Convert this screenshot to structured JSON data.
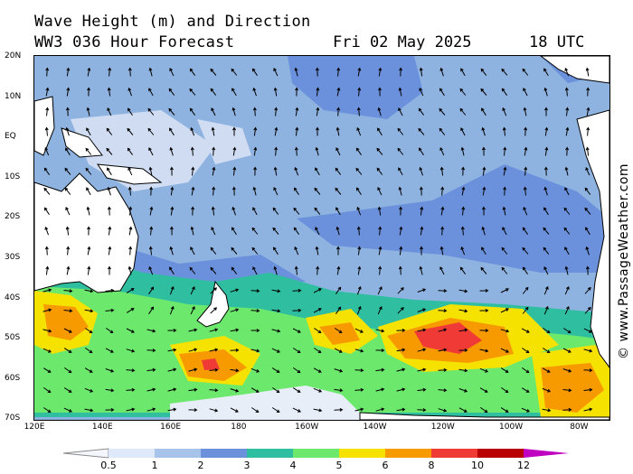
{
  "title": {
    "line1": "Wave Height (m) and Direction",
    "line2": "WW3 036 Hour Forecast",
    "date": "Fri 02 May 2025",
    "time": "18 UTC"
  },
  "watermark": "© www.PassageWeather.com",
  "axes": {
    "lat_labels": [
      "20N",
      "10N",
      "EQ",
      "10S",
      "20S",
      "30S",
      "40S",
      "50S",
      "60S",
      "70S"
    ],
    "lon_labels": [
      "120E",
      "140E",
      "160E",
      "180",
      "160W",
      "140W",
      "120W",
      "100W",
      "80W"
    ]
  },
  "legend": {
    "labels": [
      "0.5",
      "1",
      "2",
      "3",
      "4",
      "5",
      "6",
      "8",
      "10",
      "12"
    ],
    "colors": [
      "#dde8f8",
      "#a7c3ea",
      "#6b91dc",
      "#2fbea0",
      "#6ce86c",
      "#f6e200",
      "#f79a00",
      "#ef3a36",
      "#b90000",
      "#c000c0"
    ]
  },
  "colors": {
    "ocean_base": "#8fb3e0",
    "land": "#ffffff",
    "coast": "#000000"
  }
}
